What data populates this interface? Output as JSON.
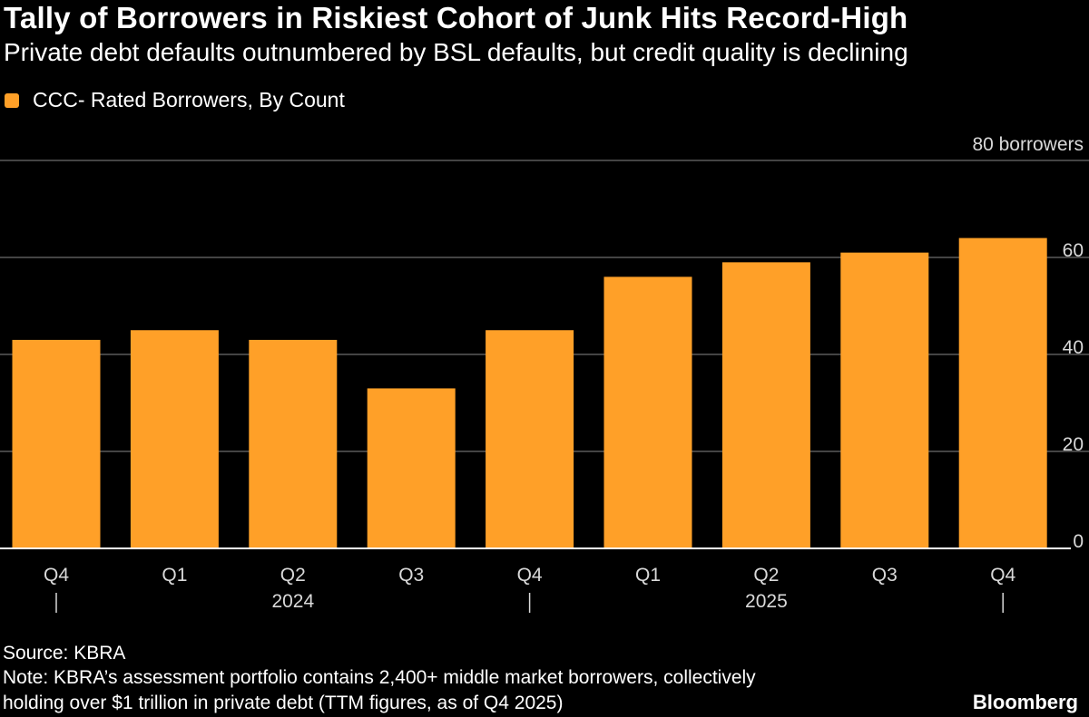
{
  "header": {
    "title": "Tally of Borrowers in Riskiest Cohort of Junk Hits Record-High",
    "subtitle": "Private debt defaults outnumbered by BSL defaults, but credit quality is declining"
  },
  "chart_data": {
    "type": "bar",
    "title": "Tally of Borrowers in Riskiest Cohort of Junk Hits Record-High",
    "subtitle": "Private debt defaults outnumbered by BSL defaults, but credit quality is declining",
    "categories": [
      "Q4",
      "Q1",
      "Q2",
      "Q3",
      "Q4",
      "Q1",
      "Q2",
      "Q3",
      "Q4"
    ],
    "year_labels": [
      {
        "label": "2024",
        "index": 2
      },
      {
        "label": "2025",
        "index": 6
      }
    ],
    "year_separator_indices": [
      0,
      4,
      8
    ],
    "series": [
      {
        "name": "CCC- Rated Borrowers, By Count",
        "values": [
          43,
          45,
          43,
          33,
          45,
          56,
          59,
          61,
          64
        ]
      }
    ],
    "xlabel": "",
    "ylabel": "",
    "ylim": [
      0,
      80
    ],
    "yticks": [
      0,
      20,
      40,
      60,
      80
    ],
    "ytick_labels": [
      "0",
      "20",
      "40",
      "60",
      "80 borrowers"
    ],
    "grid": true,
    "legend_position": "top-left"
  },
  "legend": {
    "label": "CCC- Rated Borrowers, By Count"
  },
  "footer": {
    "source": "Source: KBRA",
    "note_line1": "Note: KBRA’s assessment portfolio contains 2,400+ middle market borrowers, collectively",
    "note_line2": "holding over $1 trillion in private debt (TTM figures, as of Q4 2025)",
    "brand": "Bloomberg"
  },
  "colors": {
    "background": "#000000",
    "bar": "#FFA028",
    "text": "#FFFFFF",
    "axis_text": "#D9D9D9",
    "grid": "#5A5A5A",
    "baseline": "#FFFFFF"
  }
}
